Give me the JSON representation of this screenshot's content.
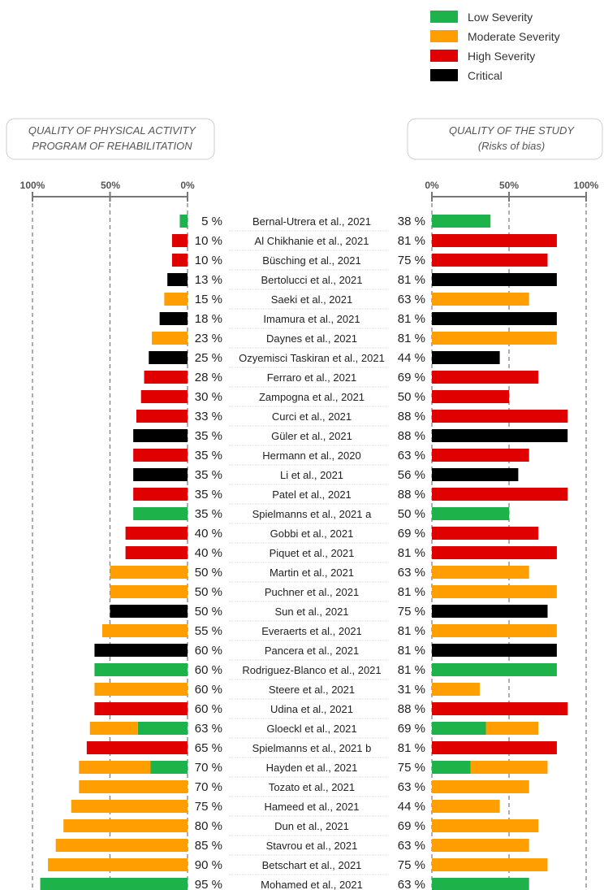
{
  "colors": {
    "low": "#1db34a",
    "moderate": "#ff9e00",
    "high": "#e00000",
    "critical": "#000000"
  },
  "legend": [
    {
      "key": "low",
      "label": "Low Severity"
    },
    {
      "key": "moderate",
      "label": "Moderate Severity"
    },
    {
      "key": "high",
      "label": "High Severity"
    },
    {
      "key": "critical",
      "label": "Critical"
    }
  ],
  "left_header": [
    "QUALITY OF PHYSICAL ACTIVITY",
    "PROGRAM OF REHABILITATION"
  ],
  "right_header": [
    "QUALITY OF THE STUDY",
    "(Risks of bias)"
  ],
  "chart_data": {
    "type": "bar",
    "left_axis": {
      "ticks": [
        "100%",
        "50%",
        "0%"
      ],
      "range": [
        100,
        0
      ]
    },
    "right_axis": {
      "ticks": [
        "0%",
        "50%",
        "100%"
      ],
      "range": [
        0,
        100
      ]
    },
    "rows": [
      {
        "study": "Bernal-Utrera et al., 2021",
        "pa": 5,
        "pa_label": "5 %",
        "pa_segments": [
          {
            "sev": "low",
            "v": 5
          }
        ],
        "rob": 38,
        "rob_label": "38 %",
        "rob_segments": [
          {
            "sev": "low",
            "v": 38
          }
        ]
      },
      {
        "study": "Al Chikhanie et al., 2021",
        "pa": 10,
        "pa_label": "10 %",
        "pa_segments": [
          {
            "sev": "high",
            "v": 10
          }
        ],
        "rob": 81,
        "rob_label": "81 %",
        "rob_segments": [
          {
            "sev": "high",
            "v": 81
          }
        ]
      },
      {
        "study": "Büsching et al., 2021",
        "pa": 10,
        "pa_label": "10 %",
        "pa_segments": [
          {
            "sev": "high",
            "v": 10
          }
        ],
        "rob": 75,
        "rob_label": "75 %",
        "rob_segments": [
          {
            "sev": "high",
            "v": 75
          }
        ]
      },
      {
        "study": "Bertolucci et al., 2021",
        "pa": 13,
        "pa_label": "13 %",
        "pa_segments": [
          {
            "sev": "critical",
            "v": 13
          }
        ],
        "rob": 81,
        "rob_label": "81 %",
        "rob_segments": [
          {
            "sev": "critical",
            "v": 81
          }
        ]
      },
      {
        "study": "Saeki et al., 2021",
        "pa": 15,
        "pa_label": "15 %",
        "pa_segments": [
          {
            "sev": "moderate",
            "v": 15
          }
        ],
        "rob": 63,
        "rob_label": "63 %",
        "rob_segments": [
          {
            "sev": "moderate",
            "v": 63
          }
        ]
      },
      {
        "study": "Imamura et al., 2021",
        "pa": 18,
        "pa_label": "18 %",
        "pa_segments": [
          {
            "sev": "critical",
            "v": 18
          }
        ],
        "rob": 81,
        "rob_label": "81 %",
        "rob_segments": [
          {
            "sev": "critical",
            "v": 81
          }
        ]
      },
      {
        "study": "Daynes et al., 2021",
        "pa": 23,
        "pa_label": "23 %",
        "pa_segments": [
          {
            "sev": "moderate",
            "v": 23
          }
        ],
        "rob": 81,
        "rob_label": "81 %",
        "rob_segments": [
          {
            "sev": "moderate",
            "v": 81
          }
        ]
      },
      {
        "study": "Ozyemisci Taskiran et al., 2021",
        "pa": 25,
        "pa_label": "25 %",
        "pa_segments": [
          {
            "sev": "critical",
            "v": 25
          }
        ],
        "rob": 44,
        "rob_label": "44 %",
        "rob_segments": [
          {
            "sev": "critical",
            "v": 44
          }
        ]
      },
      {
        "study": "Ferraro et al., 2021",
        "pa": 28,
        "pa_label": "28 %",
        "pa_segments": [
          {
            "sev": "high",
            "v": 28
          }
        ],
        "rob": 69,
        "rob_label": "69 %",
        "rob_segments": [
          {
            "sev": "high",
            "v": 69
          }
        ]
      },
      {
        "study": "Zampogna et al., 2021",
        "pa": 30,
        "pa_label": "30 %",
        "pa_segments": [
          {
            "sev": "high",
            "v": 30
          }
        ],
        "rob": 50,
        "rob_label": "50 %",
        "rob_segments": [
          {
            "sev": "high",
            "v": 50
          }
        ]
      },
      {
        "study": "Curci et al., 2021",
        "pa": 33,
        "pa_label": "33 %",
        "pa_segments": [
          {
            "sev": "high",
            "v": 33
          }
        ],
        "rob": 88,
        "rob_label": "88 %",
        "rob_segments": [
          {
            "sev": "high",
            "v": 88
          }
        ]
      },
      {
        "study": "Güler et al., 2021",
        "pa": 35,
        "pa_label": "35 %",
        "pa_segments": [
          {
            "sev": "critical",
            "v": 35
          }
        ],
        "rob": 88,
        "rob_label": "88 %",
        "rob_segments": [
          {
            "sev": "critical",
            "v": 88
          }
        ]
      },
      {
        "study": "Hermann et al., 2020",
        "pa": 35,
        "pa_label": "35 %",
        "pa_segments": [
          {
            "sev": "high",
            "v": 35
          }
        ],
        "rob": 63,
        "rob_label": "63 %",
        "rob_segments": [
          {
            "sev": "high",
            "v": 63
          }
        ]
      },
      {
        "study": "Li et al., 2021",
        "pa": 35,
        "pa_label": "35 %",
        "pa_segments": [
          {
            "sev": "critical",
            "v": 35
          }
        ],
        "rob": 56,
        "rob_label": "56 %",
        "rob_segments": [
          {
            "sev": "critical",
            "v": 56
          }
        ]
      },
      {
        "study": "Patel et al., 2021",
        "pa": 35,
        "pa_label": "35 %",
        "pa_segments": [
          {
            "sev": "high",
            "v": 35
          }
        ],
        "rob": 88,
        "rob_label": "88 %",
        "rob_segments": [
          {
            "sev": "high",
            "v": 88
          }
        ]
      },
      {
        "study": "Spielmanns et al., 2021 a",
        "pa": 35,
        "pa_label": "35 %",
        "pa_segments": [
          {
            "sev": "low",
            "v": 35
          }
        ],
        "rob": 50,
        "rob_label": "50 %",
        "rob_segments": [
          {
            "sev": "low",
            "v": 50
          }
        ]
      },
      {
        "study": "Gobbi et al., 2021",
        "pa": 40,
        "pa_label": "40 %",
        "pa_segments": [
          {
            "sev": "high",
            "v": 40
          }
        ],
        "rob": 69,
        "rob_label": "69 %",
        "rob_segments": [
          {
            "sev": "high",
            "v": 69
          }
        ]
      },
      {
        "study": "Piquet et al., 2021",
        "pa": 40,
        "pa_label": "40 %",
        "pa_segments": [
          {
            "sev": "high",
            "v": 40
          }
        ],
        "rob": 81,
        "rob_label": "81 %",
        "rob_segments": [
          {
            "sev": "high",
            "v": 81
          }
        ]
      },
      {
        "study": "Martin et al., 2021",
        "pa": 50,
        "pa_label": "50 %",
        "pa_segments": [
          {
            "sev": "moderate",
            "v": 50
          }
        ],
        "rob": 63,
        "rob_label": "63 %",
        "rob_segments": [
          {
            "sev": "moderate",
            "v": 63
          }
        ]
      },
      {
        "study": "Puchner et al., 2021",
        "pa": 50,
        "pa_label": "50 %",
        "pa_segments": [
          {
            "sev": "moderate",
            "v": 50
          }
        ],
        "rob": 81,
        "rob_label": "81 %",
        "rob_segments": [
          {
            "sev": "moderate",
            "v": 81
          }
        ]
      },
      {
        "study": "Sun et al., 2021",
        "pa": 50,
        "pa_label": "50 %",
        "pa_segments": [
          {
            "sev": "critical",
            "v": 50
          }
        ],
        "rob": 75,
        "rob_label": "75 %",
        "rob_segments": [
          {
            "sev": "critical",
            "v": 75
          }
        ]
      },
      {
        "study": "Everaerts et al., 2021",
        "pa": 55,
        "pa_label": "55 %",
        "pa_segments": [
          {
            "sev": "moderate",
            "v": 55
          }
        ],
        "rob": 81,
        "rob_label": "81 %",
        "rob_segments": [
          {
            "sev": "moderate",
            "v": 81
          }
        ]
      },
      {
        "study": "Pancera et al., 2021",
        "pa": 60,
        "pa_label": "60 %",
        "pa_segments": [
          {
            "sev": "critical",
            "v": 60
          }
        ],
        "rob": 81,
        "rob_label": "81 %",
        "rob_segments": [
          {
            "sev": "critical",
            "v": 81
          }
        ]
      },
      {
        "study": "Rodriguez-Blanco et al., 2021",
        "pa": 60,
        "pa_label": "60 %",
        "pa_segments": [
          {
            "sev": "low",
            "v": 60
          }
        ],
        "rob": 81,
        "rob_label": "81 %",
        "rob_segments": [
          {
            "sev": "low",
            "v": 81
          }
        ]
      },
      {
        "study": "Steere et al., 2021",
        "pa": 60,
        "pa_label": "60 %",
        "pa_segments": [
          {
            "sev": "moderate",
            "v": 60
          }
        ],
        "rob": 31,
        "rob_label": "31 %",
        "rob_segments": [
          {
            "sev": "moderate",
            "v": 31
          }
        ]
      },
      {
        "study": "Udina et al., 2021",
        "pa": 60,
        "pa_label": "60 %",
        "pa_segments": [
          {
            "sev": "high",
            "v": 60
          }
        ],
        "rob": 88,
        "rob_label": "88 %",
        "rob_segments": [
          {
            "sev": "high",
            "v": 88
          }
        ]
      },
      {
        "study": "Gloeckl et al., 2021",
        "pa": 63,
        "pa_label": "63 %",
        "pa_segments": [
          {
            "sev": "low",
            "v": 32
          },
          {
            "sev": "moderate",
            "v": 31
          }
        ],
        "rob": 69,
        "rob_label": "69 %",
        "rob_segments": [
          {
            "sev": "low",
            "v": 35
          },
          {
            "sev": "moderate",
            "v": 34
          }
        ]
      },
      {
        "study": "Spielmanns et al., 2021 b",
        "pa": 65,
        "pa_label": "65 %",
        "pa_segments": [
          {
            "sev": "high",
            "v": 65
          }
        ],
        "rob": 81,
        "rob_label": "81 %",
        "rob_segments": [
          {
            "sev": "high",
            "v": 81
          }
        ]
      },
      {
        "study": "Hayden et al., 2021",
        "pa": 70,
        "pa_label": "70 %",
        "pa_segments": [
          {
            "sev": "low",
            "v": 24
          },
          {
            "sev": "moderate",
            "v": 46
          }
        ],
        "rob": 75,
        "rob_label": "75 %",
        "rob_segments": [
          {
            "sev": "low",
            "v": 25
          },
          {
            "sev": "moderate",
            "v": 50
          }
        ]
      },
      {
        "study": "Tozato et al., 2021",
        "pa": 70,
        "pa_label": "70 %",
        "pa_segments": [
          {
            "sev": "moderate",
            "v": 70
          }
        ],
        "rob": 63,
        "rob_label": "63 %",
        "rob_segments": [
          {
            "sev": "moderate",
            "v": 63
          }
        ]
      },
      {
        "study": "Hameed et al., 2021",
        "pa": 75,
        "pa_label": "75 %",
        "pa_segments": [
          {
            "sev": "moderate",
            "v": 75
          }
        ],
        "rob": 44,
        "rob_label": "44 %",
        "rob_segments": [
          {
            "sev": "moderate",
            "v": 44
          }
        ]
      },
      {
        "study": "Dun et al., 2021",
        "pa": 80,
        "pa_label": "80 %",
        "pa_segments": [
          {
            "sev": "moderate",
            "v": 80
          }
        ],
        "rob": 69,
        "rob_label": "69 %",
        "rob_segments": [
          {
            "sev": "moderate",
            "v": 69
          }
        ]
      },
      {
        "study": "Stavrou et al., 2021",
        "pa": 85,
        "pa_label": "85 %",
        "pa_segments": [
          {
            "sev": "moderate",
            "v": 85
          }
        ],
        "rob": 63,
        "rob_label": "63 %",
        "rob_segments": [
          {
            "sev": "moderate",
            "v": 63
          }
        ]
      },
      {
        "study": "Betschart et al., 2021",
        "pa": 90,
        "pa_label": "90 %",
        "pa_segments": [
          {
            "sev": "moderate",
            "v": 90
          }
        ],
        "rob": 75,
        "rob_label": "75 %",
        "rob_segments": [
          {
            "sev": "moderate",
            "v": 75
          }
        ]
      },
      {
        "study": "Mohamed et al., 2021",
        "pa": 95,
        "pa_label": "95 %",
        "pa_segments": [
          {
            "sev": "low",
            "v": 95
          }
        ],
        "rob": 63,
        "rob_label": "63 %",
        "rob_segments": [
          {
            "sev": "low",
            "v": 63
          }
        ]
      }
    ]
  }
}
